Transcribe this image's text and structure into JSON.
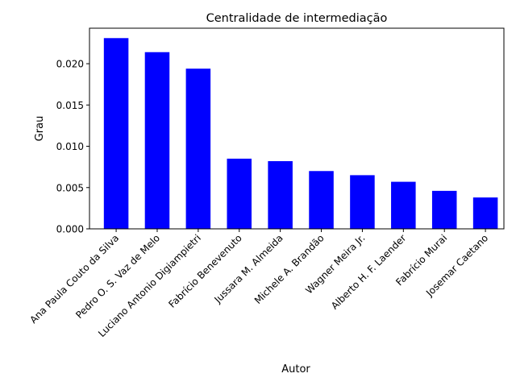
{
  "chart_data": {
    "type": "bar",
    "title": "Centralidade de intermediação",
    "xlabel": "Autor",
    "ylabel": "Grau",
    "categories": [
      "Ana Paula Couto da Silva",
      "Pedro O. S. Vaz de Melo",
      "Luciano Antonio Digiampietri",
      "Fabrício Benevenuto",
      "Jussara M. Almeida",
      "Michele A. Brandão",
      "Wagner Meira Jr.",
      "Alberto H. F. Laender",
      "Fabrício Murai",
      "Josemar Caetano"
    ],
    "values": [
      0.0231,
      0.0214,
      0.0194,
      0.0085,
      0.0082,
      0.007,
      0.0065,
      0.0057,
      0.0046,
      0.0038
    ],
    "ylim": [
      0,
      0.0243
    ],
    "yticks": [
      "0.000",
      "0.005",
      "0.010",
      "0.015",
      "0.020"
    ],
    "ytick_values": [
      0,
      0.005,
      0.01,
      0.015,
      0.02
    ],
    "bar_color": "#0000ff",
    "grid": false,
    "legend": "none"
  }
}
